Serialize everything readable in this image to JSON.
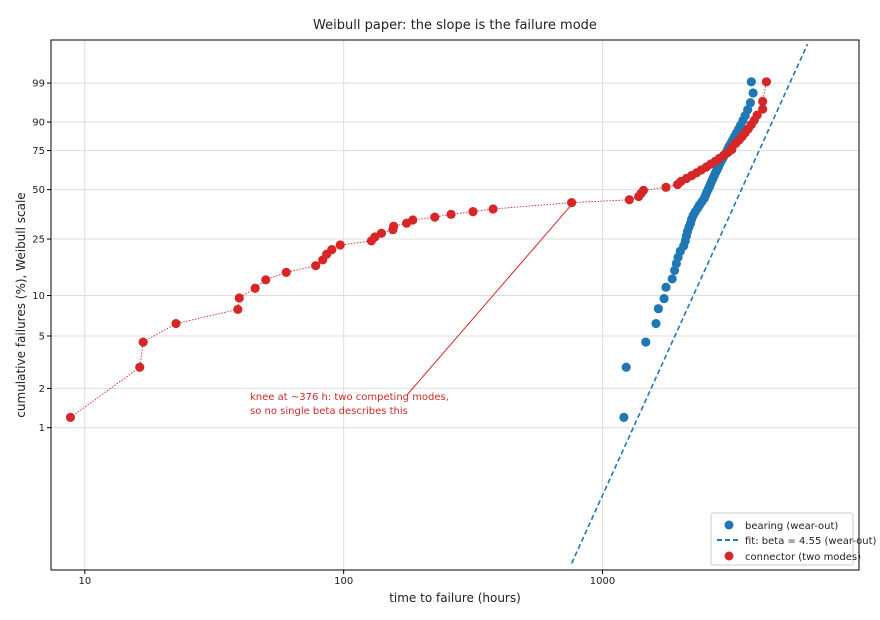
{
  "chart_data": {
    "type": "scatter",
    "title": "Weibull paper: the slope is the failure mode",
    "xlabel": "time to failure (hours)",
    "ylabel": "cumulative failures (%), Weibull scale",
    "x_scale": "log",
    "y_scale": "weibull",
    "xlim": [
      7.4,
      9800
    ],
    "ylim_percent": [
      0.08,
      99.995
    ],
    "grid": true,
    "x_ticks": [
      {
        "value": 10,
        "label": "10"
      },
      {
        "value": 100,
        "label": "100"
      },
      {
        "value": 1000,
        "label": "1000"
      }
    ],
    "y_ticks": [
      {
        "value": 1,
        "label": "1"
      },
      {
        "value": 2,
        "label": "2"
      },
      {
        "value": 5,
        "label": "5"
      },
      {
        "value": 10,
        "label": "10"
      },
      {
        "value": 25,
        "label": "25"
      },
      {
        "value": 50,
        "label": "50"
      },
      {
        "value": 75,
        "label": "75"
      },
      {
        "value": 90,
        "label": "90"
      },
      {
        "value": 99,
        "label": "99"
      }
    ],
    "series": [
      {
        "name": "bearing (wear-out)",
        "color": "#1f77b4",
        "style": "points",
        "points": [
          [
            1210,
            1.2
          ],
          [
            1235,
            2.9
          ],
          [
            1470,
            4.5
          ],
          [
            1610,
            6.2
          ],
          [
            1645,
            8.0
          ],
          [
            1730,
            9.5
          ],
          [
            1760,
            11.5
          ],
          [
            1860,
            13.2
          ],
          [
            1900,
            15.2
          ],
          [
            1930,
            17.0
          ],
          [
            1960,
            18.8
          ],
          [
            2000,
            20.7
          ],
          [
            2060,
            22.5
          ],
          [
            2090,
            24.3
          ],
          [
            2110,
            26.2
          ],
          [
            2130,
            28.0
          ],
          [
            2160,
            29.9
          ],
          [
            2190,
            31.7
          ],
          [
            2210,
            33.5
          ],
          [
            2240,
            35.4
          ],
          [
            2280,
            37.2
          ],
          [
            2330,
            39.1
          ],
          [
            2370,
            40.9
          ],
          [
            2420,
            42.7
          ],
          [
            2470,
            44.6
          ],
          [
            2500,
            46.4
          ],
          [
            2530,
            48.3
          ],
          [
            2560,
            50.1
          ],
          [
            2590,
            51.9
          ],
          [
            2620,
            53.8
          ],
          [
            2650,
            55.6
          ],
          [
            2680,
            57.5
          ],
          [
            2710,
            59.3
          ],
          [
            2740,
            61.1
          ],
          [
            2780,
            63.0
          ],
          [
            2810,
            64.8
          ],
          [
            2840,
            66.7
          ],
          [
            2880,
            68.5
          ],
          [
            2920,
            70.3
          ],
          [
            2960,
            72.2
          ],
          [
            3010,
            74.0
          ],
          [
            3050,
            75.9
          ],
          [
            3090,
            77.7
          ],
          [
            3140,
            79.5
          ],
          [
            3190,
            81.4
          ],
          [
            3240,
            83.2
          ],
          [
            3300,
            85.1
          ],
          [
            3360,
            86.9
          ],
          [
            3420,
            88.7
          ],
          [
            3490,
            90.6
          ],
          [
            3560,
            92.4
          ],
          [
            3640,
            94.3
          ],
          [
            3730,
            96.1
          ],
          [
            3820,
            97.9
          ],
          [
            3760,
            99.1
          ]
        ]
      },
      {
        "name": "fit: beta = 4.55 (wear-out)",
        "color": "#1f77b4",
        "style": "dashed-line",
        "points": [
          [
            760,
            0.09
          ],
          [
            6200,
            99.99
          ]
        ]
      },
      {
        "name": "connector (two modes)",
        "color": "#d62728",
        "style": "points-dotted-line",
        "points": [
          [
            8.8,
            1.2
          ],
          [
            16.3,
            2.9
          ],
          [
            16.8,
            4.5
          ],
          [
            22.5,
            6.2
          ],
          [
            39.0,
            7.9
          ],
          [
            39.5,
            9.6
          ],
          [
            45.5,
            11.3
          ],
          [
            50.0,
            13.0
          ],
          [
            60.0,
            14.7
          ],
          [
            78.0,
            16.4
          ],
          [
            83.0,
            18.0
          ],
          [
            86.0,
            19.7
          ],
          [
            90.0,
            21.2
          ],
          [
            97.0,
            22.8
          ],
          [
            128.0,
            24.3
          ],
          [
            132.0,
            25.8
          ],
          [
            140.0,
            27.3
          ],
          [
            155.0,
            28.8
          ],
          [
            156.0,
            30.3
          ],
          [
            175.0,
            31.7
          ],
          [
            185.0,
            33.2
          ],
          [
            225.0,
            34.6
          ],
          [
            260.0,
            36.0
          ],
          [
            316.0,
            37.4
          ],
          [
            378.0,
            38.8
          ],
          [
            760.0,
            42.3
          ],
          [
            1270.0,
            43.9
          ],
          [
            1380.0,
            45.8
          ],
          [
            1410.0,
            47.7
          ],
          [
            1440.0,
            49.5
          ],
          [
            1760.0,
            51.4
          ],
          [
            1950.0,
            53.2
          ],
          [
            2010.0,
            55.1
          ],
          [
            2110.0,
            57.0
          ],
          [
            2210.0,
            58.9
          ],
          [
            2310.0,
            60.7
          ],
          [
            2410.0,
            62.6
          ],
          [
            2520.0,
            64.5
          ],
          [
            2620.0,
            66.4
          ],
          [
            2730.0,
            68.2
          ],
          [
            2830.0,
            70.1
          ],
          [
            2940.0,
            72.0
          ],
          [
            3050.0,
            73.8
          ],
          [
            3160.0,
            75.7
          ],
          [
            3180.0,
            77.6
          ],
          [
            3280.0,
            79.5
          ],
          [
            3380.0,
            81.4
          ],
          [
            3470.0,
            83.2
          ],
          [
            3560.0,
            85.1
          ],
          [
            3660.0,
            87.0
          ],
          [
            3760.0,
            88.9
          ],
          [
            3860.0,
            90.7
          ],
          [
            3960.0,
            92.6
          ],
          [
            4160.0,
            94.5
          ],
          [
            4160.0,
            96.4
          ],
          [
            4300.0,
            99.1
          ]
        ]
      }
    ],
    "annotation": {
      "lines": [
        "knee at ~376 h: two competing modes,",
        "so no single beta describes this"
      ],
      "color": "#d62728",
      "arrow_target": [
        760,
        42.3
      ]
    },
    "legend": {
      "placement": "bottom-right",
      "entries": [
        "bearing (wear-out)",
        "fit: beta = 4.55 (wear-out)",
        "connector (two modes)"
      ]
    }
  }
}
